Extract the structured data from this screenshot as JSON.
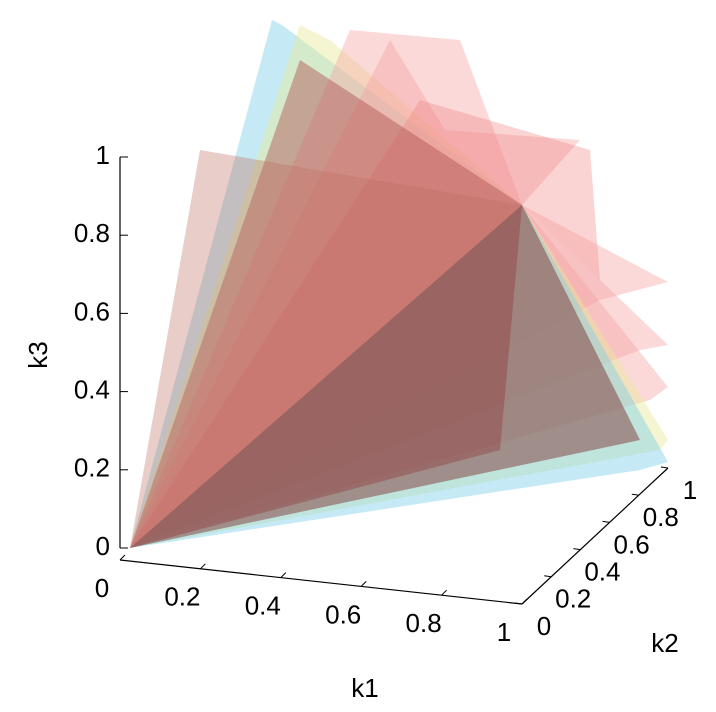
{
  "chart_data": {
    "type": "surface3d",
    "xlabel": "k1",
    "ylabel": "k2",
    "zlabel": "k3",
    "xlim": [
      0,
      1
    ],
    "ylim": [
      0,
      1
    ],
    "zlim": [
      0,
      1
    ],
    "xticks": [
      0,
      0.2,
      0.4,
      0.6,
      0.8,
      1
    ],
    "yticks": [
      0,
      0.2,
      0.4,
      0.6,
      0.8,
      1
    ],
    "zticks": [
      0,
      0.2,
      0.4,
      0.6,
      0.8,
      1
    ]
  }
}
